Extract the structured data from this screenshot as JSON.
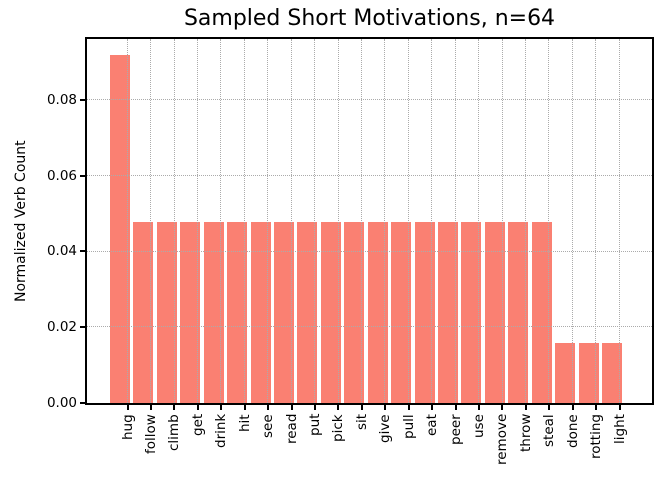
{
  "chart_data": {
    "type": "bar",
    "title": "Sampled Short Motivations, n=64",
    "xlabel": "",
    "ylabel": "Normalized Verb Count",
    "categories": [
      "hug",
      "follow",
      "climb",
      "get",
      "drink",
      "hit",
      "see",
      "read",
      "put",
      "pick",
      "sit",
      "give",
      "pull",
      "eat",
      "peer",
      "use",
      "remove",
      "throw",
      "steal",
      "done",
      "rotting",
      "light"
    ],
    "values": [
      0.0918,
      0.0478,
      0.0478,
      0.0478,
      0.0478,
      0.0478,
      0.0478,
      0.0478,
      0.0478,
      0.0478,
      0.0478,
      0.0478,
      0.0478,
      0.0478,
      0.0478,
      0.0478,
      0.0478,
      0.0478,
      0.0478,
      0.0159,
      0.0159,
      0.0159
    ],
    "ylim": [
      0,
      0.096
    ],
    "yticks": [
      0,
      0.02,
      0.04,
      0.06,
      0.08
    ],
    "ytick_labels": [
      "0.00",
      "0.02",
      "0.04",
      "0.06",
      "0.08"
    ],
    "bar_color": "#fa8072",
    "grid": {
      "on": true,
      "style": "dotted",
      "color": "#ababab",
      "above_bars": true
    },
    "spine_color": "#000000",
    "text_color": "#000000",
    "background": "#ffffff",
    "legend": null
  }
}
